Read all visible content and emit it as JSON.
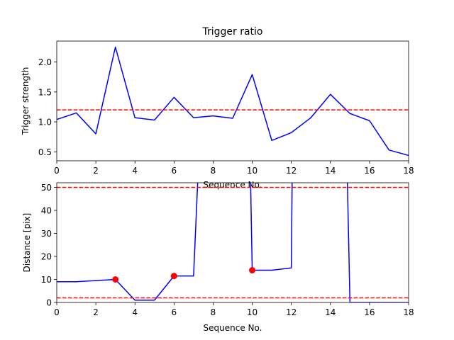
{
  "chart_data": [
    {
      "type": "line",
      "title": "Trigger ratio",
      "xlabel": "Sequence No.",
      "ylabel": "Trigger strength",
      "xlim": [
        0,
        18
      ],
      "ylim": [
        0.35,
        2.35
      ],
      "xticks": [
        "0",
        "2",
        "4",
        "6",
        "8",
        "10",
        "12",
        "14",
        "16",
        "18"
      ],
      "yticks": [
        "0.5",
        "1.0",
        "1.5",
        "2.0"
      ],
      "series": [
        {
          "color": "#0000ff",
          "x": [
            0,
            1,
            2,
            3,
            4,
            5,
            6,
            7,
            8,
            9,
            10,
            11,
            12,
            13,
            14,
            15,
            16,
            17,
            18
          ],
          "y": [
            1.04,
            1.15,
            0.8,
            2.25,
            1.07,
            1.03,
            1.41,
            1.07,
            1.1,
            1.06,
            1.79,
            0.69,
            0.82,
            1.07,
            1.46,
            1.14,
            1.02,
            0.53,
            0.44
          ]
        }
      ],
      "hlines": [
        {
          "y": 1.2,
          "color": "#ff0000",
          "style": "dashed"
        }
      ]
    },
    {
      "type": "line",
      "title": "",
      "xlabel": "Sequence No.",
      "ylabel": "Distance [pix]",
      "xlim": [
        0,
        18
      ],
      "ylim": [
        0,
        52
      ],
      "xticks": [
        "0",
        "2",
        "4",
        "6",
        "8",
        "10",
        "12",
        "14",
        "16",
        "18"
      ],
      "yticks": [
        "0",
        "10",
        "20",
        "30",
        "40",
        "50"
      ],
      "series": [
        {
          "color": "#0000ff",
          "x": [
            0,
            1,
            3,
            4,
            5,
            6,
            7,
            7.25,
            9.9,
            10,
            11,
            12,
            12.05,
            14.85,
            15,
            18
          ],
          "y": [
            9,
            9,
            10,
            1,
            1,
            11.5,
            11.5,
            60,
            60,
            14,
            14,
            15,
            60,
            60,
            0,
            0
          ]
        }
      ],
      "markers": {
        "color": "#ff0000",
        "x": [
          3,
          6,
          10
        ],
        "y": [
          10,
          11.5,
          14
        ]
      },
      "hlines": [
        {
          "y": 50,
          "color": "#ff0000",
          "style": "dashed"
        },
        {
          "y": 2,
          "color": "#ff0000",
          "style": "dashed"
        }
      ]
    }
  ]
}
